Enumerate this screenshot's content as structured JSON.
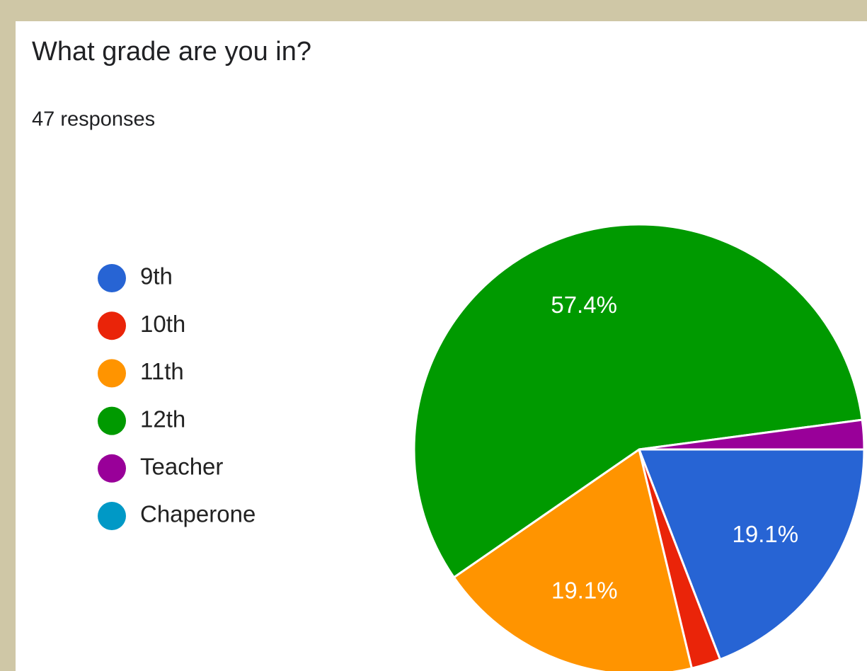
{
  "chart_data": {
    "type": "pie",
    "title": "What grade are you in?",
    "subtitle": "47 responses",
    "categories": [
      "9th",
      "10th",
      "11th",
      "12th",
      "Teacher",
      "Chaperone"
    ],
    "values": [
      19.1,
      2.1,
      19.1,
      57.4,
      2.1,
      0
    ],
    "value_labels": [
      "19.1%",
      null,
      "19.1%",
      "57.4%",
      null,
      null
    ],
    "colors": [
      "#2764d4",
      "#ea2409",
      "#ff9400",
      "#009a00",
      "#990099",
      "#0099c6"
    ],
    "legend": "left"
  }
}
